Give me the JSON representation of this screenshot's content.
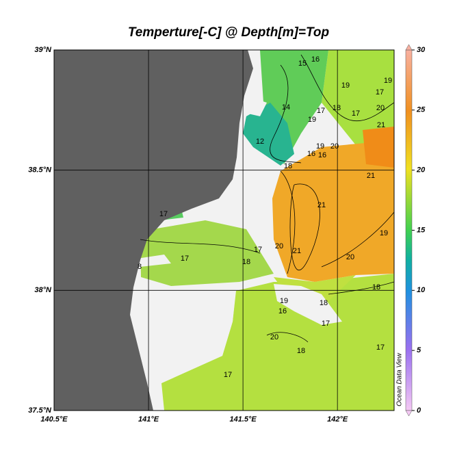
{
  "chart_data": {
    "type": "map",
    "title": "Temperture[-C] @ Depth[m]=Top",
    "xlim": [
      140.5,
      142.3
    ],
    "ylim": [
      37.5,
      39
    ],
    "xticks": [
      {
        "value": 140.5,
        "label": "140.5°E"
      },
      {
        "value": 141,
        "label": "141°E"
      },
      {
        "value": 141.5,
        "label": "141.5°E"
      },
      {
        "value": 142,
        "label": "142°E"
      }
    ],
    "yticks": [
      {
        "value": 37.5,
        "label": "37.5°N"
      },
      {
        "value": 38,
        "label": "38°N"
      },
      {
        "value": 38.5,
        "label": "38.5°N"
      },
      {
        "value": 39,
        "label": "39°N"
      }
    ],
    "grid": true,
    "colorbar": {
      "lim": [
        0,
        30
      ],
      "ticks": [
        0,
        5,
        10,
        15,
        20,
        25,
        30
      ]
    },
    "contour_labels": [
      15,
      16,
      19,
      19,
      17,
      14,
      17,
      19,
      18,
      17,
      20,
      21,
      12,
      19,
      20,
      16,
      16,
      18,
      21,
      21,
      20,
      21,
      19,
      20,
      17,
      17,
      18,
      17,
      8,
      18,
      19,
      18,
      16,
      17,
      20,
      18,
      17,
      17
    ],
    "watermark": "Ocean Data View"
  }
}
